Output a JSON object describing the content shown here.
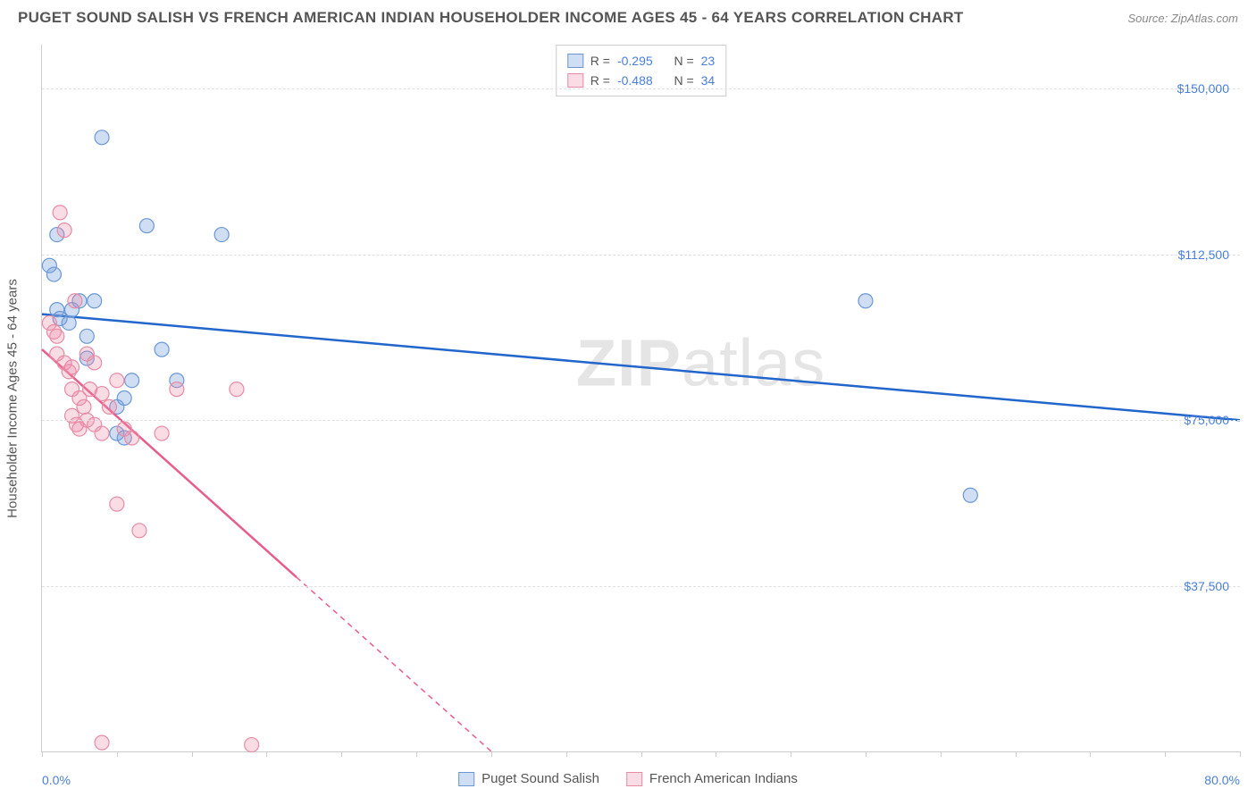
{
  "title": "PUGET SOUND SALISH VS FRENCH AMERICAN INDIAN HOUSEHOLDER INCOME AGES 45 - 64 YEARS CORRELATION CHART",
  "source": "Source: ZipAtlas.com",
  "watermark_a": "ZIP",
  "watermark_b": "atlas",
  "yaxis_title": "Householder Income Ages 45 - 64 years",
  "chart": {
    "type": "scatter",
    "xlim": [
      0,
      80
    ],
    "ylim": [
      0,
      160000
    ],
    "x_min_label": "0.0%",
    "x_max_label": "80.0%",
    "y_ticks": [
      {
        "v": 37500,
        "label": "$37,500"
      },
      {
        "v": 75000,
        "label": "$75,000"
      },
      {
        "v": 112500,
        "label": "$112,500"
      },
      {
        "v": 150000,
        "label": "$150,000"
      }
    ],
    "x_tick_step": 5,
    "grid_color": "#e0e0e0",
    "axis_color": "#cccccc",
    "background_color": "#ffffff",
    "label_color": "#4a7fd8",
    "title_color": "#555555",
    "marker_radius": 8,
    "marker_stroke_width": 1.2,
    "line_width": 2.5,
    "series": [
      {
        "name": "Puget Sound Salish",
        "color_fill": "rgba(120,160,220,0.35)",
        "color_stroke": "#6a98d6",
        "line_color": "#2266cc",
        "R": "-0.295",
        "N": "23",
        "points": [
          [
            0.5,
            110000
          ],
          [
            0.8,
            108000
          ],
          [
            1.0,
            117000
          ],
          [
            1.0,
            100000
          ],
          [
            1.2,
            98000
          ],
          [
            1.8,
            97000
          ],
          [
            2.0,
            100000
          ],
          [
            2.5,
            102000
          ],
          [
            3.0,
            94000
          ],
          [
            3.0,
            89000
          ],
          [
            3.5,
            102000
          ],
          [
            4.0,
            139000
          ],
          [
            5.0,
            78000
          ],
          [
            5.0,
            72000
          ],
          [
            5.5,
            80000
          ],
          [
            5.5,
            71000
          ],
          [
            6.0,
            84000
          ],
          [
            7.0,
            119000
          ],
          [
            8.0,
            91000
          ],
          [
            9.0,
            84000
          ],
          [
            12.0,
            117000
          ],
          [
            55.0,
            102000
          ],
          [
            62.0,
            58000
          ]
        ],
        "trend": {
          "x1": 0,
          "y1": 99000,
          "x2": 80,
          "y2": 75000,
          "dash_from_x": 80
        }
      },
      {
        "name": "French American Indians",
        "color_fill": "rgba(240,140,170,0.3)",
        "color_stroke": "#e88ba5",
        "line_color": "#e85d8a",
        "R": "-0.488",
        "N": "34",
        "points": [
          [
            0.5,
            97000
          ],
          [
            0.8,
            95000
          ],
          [
            1.0,
            94000
          ],
          [
            1.0,
            90000
          ],
          [
            1.2,
            122000
          ],
          [
            1.5,
            118000
          ],
          [
            1.5,
            88000
          ],
          [
            1.8,
            86000
          ],
          [
            2.0,
            87000
          ],
          [
            2.0,
            82000
          ],
          [
            2.0,
            76000
          ],
          [
            2.2,
            102000
          ],
          [
            2.3,
            74000
          ],
          [
            2.5,
            80000
          ],
          [
            2.5,
            73000
          ],
          [
            2.8,
            78000
          ],
          [
            3.0,
            90000
          ],
          [
            3.0,
            75000
          ],
          [
            3.2,
            82000
          ],
          [
            3.5,
            88000
          ],
          [
            3.5,
            74000
          ],
          [
            4.0,
            81000
          ],
          [
            4.0,
            72000
          ],
          [
            4.5,
            78000
          ],
          [
            5.0,
            84000
          ],
          [
            5.0,
            56000
          ],
          [
            5.5,
            73000
          ],
          [
            6.0,
            71000
          ],
          [
            6.5,
            50000
          ],
          [
            8.0,
            72000
          ],
          [
            9.0,
            82000
          ],
          [
            13.0,
            82000
          ],
          [
            4.0,
            2000
          ],
          [
            14.0,
            1500
          ]
        ],
        "trend": {
          "x1": 0,
          "y1": 91000,
          "x2": 30,
          "y2": 0,
          "dash_from_x": 17
        }
      }
    ]
  },
  "legend_top": {
    "r_label": "R =",
    "n_label": "N ="
  }
}
